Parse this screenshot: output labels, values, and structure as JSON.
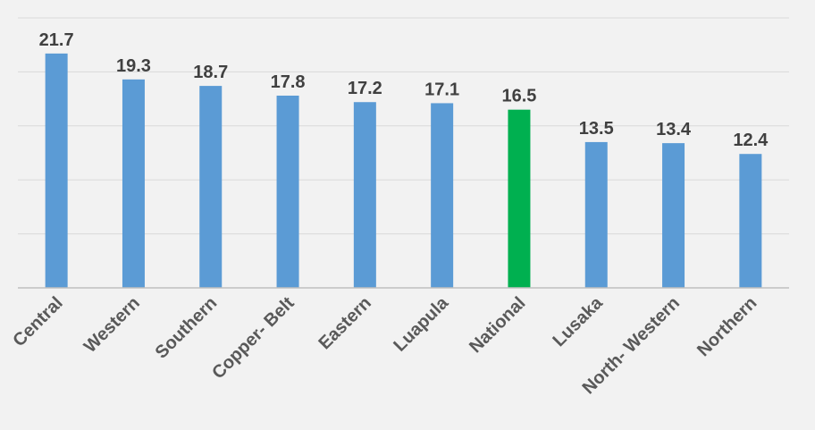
{
  "chart_data": {
    "type": "bar",
    "title": "",
    "xlabel": "",
    "ylabel": "",
    "categories": [
      "Central",
      "Western",
      "Southern",
      "Copper- Belt",
      "Eastern",
      "Luapula",
      "National",
      "Lusaka",
      "North- Western",
      "Northern"
    ],
    "values": [
      21.7,
      19.3,
      18.7,
      17.8,
      17.2,
      17.1,
      16.5,
      13.5,
      13.4,
      12.4
    ],
    "ylim": [
      0,
      25
    ],
    "grid": true,
    "legend": "none",
    "colors": {
      "default": "#5b9bd5",
      "highlight": "#00b050",
      "highlight_category": "National"
    }
  }
}
